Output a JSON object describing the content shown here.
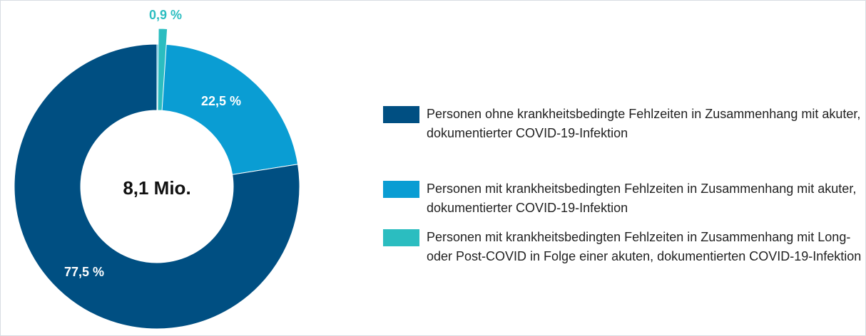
{
  "chart_data": {
    "type": "pie",
    "center_label": "8,1 Mio.",
    "categories": [
      "Personen ohne krankheitsbedingte Fehlzeiten in Zusammenhang mit akuter, dokumentierter COVID-19-Infektion",
      "Personen mit krankheitsbedingten Fehlzeiten in Zusammenhang mit akuter, dokumentierter COVID-19-Infektion",
      "Personen mit krankheitsbedingten Fehlzeiten in Zusammenhang mit Long- oder Post-COVID in Folge einer akuten, dokumentierten COVID-19-Infektion"
    ],
    "values": [
      77.5,
      22.5,
      0.9
    ],
    "value_labels": [
      "77,5 %",
      "22,5 %",
      "0,9 %"
    ],
    "colors": [
      "#004f82",
      "#0a9dd3",
      "#2bbdc0"
    ]
  }
}
